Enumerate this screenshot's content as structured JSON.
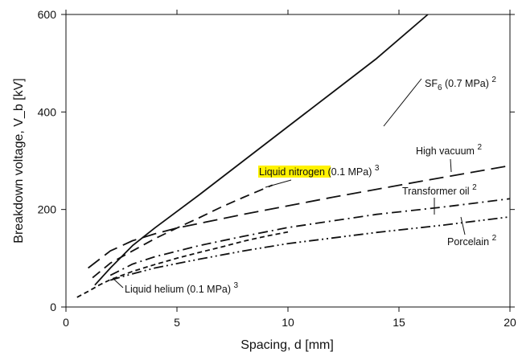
{
  "chart_data": {
    "type": "line",
    "title": "",
    "xlabel": "Spacing, d  [mm]",
    "ylabel": "Breakdown voltage, V_b  [kV]",
    "xlim": [
      0,
      20
    ],
    "ylim": [
      0,
      600
    ],
    "x_ticks": [
      0,
      5,
      10,
      15,
      20
    ],
    "y_ticks": [
      0,
      200,
      400,
      600
    ],
    "grid": false,
    "legend": "none",
    "series": [
      {
        "name": "SF6 (0.7 MPa) 2",
        "label_main": "SF",
        "label_sub": "6",
        "label_tail": " (0.7 MPa) ",
        "label_sup": "2",
        "line_style": "solid",
        "highlight": false,
        "points": [
          [
            1.3,
            45
          ],
          [
            2,
            80
          ],
          [
            3,
            126
          ],
          [
            4,
            162
          ],
          [
            6,
            230
          ],
          [
            8,
            300
          ],
          [
            10,
            370
          ],
          [
            12,
            440
          ],
          [
            14,
            510
          ],
          [
            16.3,
            600
          ]
        ]
      },
      {
        "name": "High vacuum 2",
        "label_main": "High vacuum",
        "label_sub": "",
        "label_tail": " ",
        "label_sup": "2",
        "line_style": "long-dash",
        "highlight": false,
        "points": [
          [
            1.0,
            80
          ],
          [
            2,
            115
          ],
          [
            3,
            136
          ],
          [
            4,
            150
          ],
          [
            5,
            162
          ],
          [
            8,
            190
          ],
          [
            12,
            225
          ],
          [
            16,
            258
          ],
          [
            20,
            290
          ]
        ]
      },
      {
        "name": "Liquid nitrogen (0.1 MPa) 3",
        "label_main": "Liquid nitrogen",
        "label_sub": "",
        "label_tail": " (0.1 MPa) ",
        "label_sup": "3",
        "line_style": "dash",
        "highlight": true,
        "points": [
          [
            1.2,
            60
          ],
          [
            2,
            90
          ],
          [
            3,
            115
          ],
          [
            4,
            140
          ],
          [
            5,
            162
          ],
          [
            6,
            183
          ],
          [
            7,
            205
          ],
          [
            8,
            225
          ],
          [
            9.3,
            250
          ]
        ]
      },
      {
        "name": "Transformer oil 2",
        "label_main": "Transformer oil",
        "label_sub": "",
        "label_tail": " ",
        "label_sup": "2",
        "line_style": "dash-dot",
        "highlight": false,
        "points": [
          [
            2.0,
            65
          ],
          [
            3,
            88
          ],
          [
            4,
            103
          ],
          [
            6,
            126
          ],
          [
            8,
            145
          ],
          [
            10,
            163
          ],
          [
            14,
            190
          ],
          [
            17,
            205
          ],
          [
            20,
            222
          ]
        ]
      },
      {
        "name": "Porcelain 2",
        "label_main": "Porcelain",
        "label_sub": "",
        "label_tail": " ",
        "label_sup": "2",
        "line_style": "dash-dot-dot",
        "highlight": false,
        "points": [
          [
            2.0,
            55
          ],
          [
            3,
            68
          ],
          [
            4,
            80
          ],
          [
            6,
            98
          ],
          [
            8,
            115
          ],
          [
            10,
            130
          ],
          [
            14,
            153
          ],
          [
            17,
            168
          ],
          [
            20,
            185
          ]
        ]
      },
      {
        "name": "Liquid helium (0.1 MPa) 3",
        "label_main": "Liquid helium",
        "label_sub": "",
        "label_tail": " (0.1 MPa) ",
        "label_sup": "3",
        "line_style": "short-dash",
        "highlight": false,
        "points": [
          [
            0.5,
            20
          ],
          [
            1,
            32
          ],
          [
            1.5,
            45
          ],
          [
            2,
            56
          ],
          [
            3,
            73
          ],
          [
            4,
            87
          ],
          [
            5,
            100
          ],
          [
            6,
            112
          ],
          [
            7,
            123
          ],
          [
            8,
            135
          ],
          [
            9,
            145
          ],
          [
            10,
            154
          ]
        ]
      }
    ]
  }
}
